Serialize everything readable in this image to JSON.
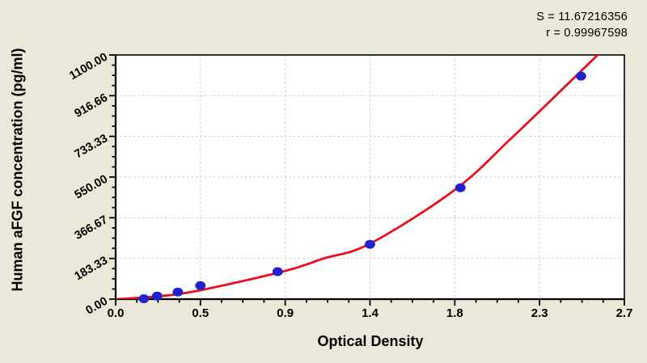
{
  "chart_data": {
    "type": "scatter",
    "title": "",
    "xlabel": "Optical Density",
    "ylabel": "Human aFGF concentration (pg/ml)",
    "xlim": [
      0,
      2.7
    ],
    "ylim": [
      0,
      1100
    ],
    "x_major_ticks": [
      0,
      0.45,
      0.9,
      1.35,
      1.8,
      2.25,
      2.7
    ],
    "x_tick_labels": [
      "0.0",
      "0.5",
      "0.9",
      "1.4",
      "1.8",
      "2.3",
      "2.7"
    ],
    "y_major_ticks": [
      0,
      183.33,
      366.67,
      550.0,
      733.33,
      916.66,
      1100.0
    ],
    "y_tick_labels": [
      "0.00",
      "183.33",
      "366.67",
      "550.00",
      "733.33",
      "916.66",
      "1100.00"
    ],
    "minor_tick_divisions": 4,
    "grid": {
      "show": true,
      "on": "major",
      "style": "dashed",
      "color": "#c9c9c9"
    },
    "legend": {
      "show": false
    },
    "annotations": {
      "s_text": "S = 11.67216356",
      "r_text": "r = 0.99967598"
    },
    "points": [
      {
        "od": 0.15,
        "conc": 2
      },
      {
        "od": 0.22,
        "conc": 14
      },
      {
        "od": 0.33,
        "conc": 32
      },
      {
        "od": 0.45,
        "conc": 61
      },
      {
        "od": 0.86,
        "conc": 124
      },
      {
        "od": 1.35,
        "conc": 247
      },
      {
        "od": 1.83,
        "conc": 502
      },
      {
        "od": 2.47,
        "conc": 1005
      }
    ],
    "fit_curve_samples": [
      [
        0.0,
        0
      ],
      [
        0.22,
        12
      ],
      [
        0.45,
        40
      ],
      [
        0.9,
        127
      ],
      [
        1.1,
        182
      ],
      [
        1.35,
        250
      ],
      [
        1.8,
        492
      ],
      [
        2.1,
        725
      ],
      [
        2.33,
        912
      ],
      [
        2.58,
        1118
      ]
    ],
    "colors": {
      "background": "#ece8d9",
      "plot_background": "#ffffff",
      "curve": "#e8101c",
      "marker": "#2121cd",
      "frame": "#000000",
      "grid": "#c9c9c9",
      "text": "#000000"
    }
  }
}
